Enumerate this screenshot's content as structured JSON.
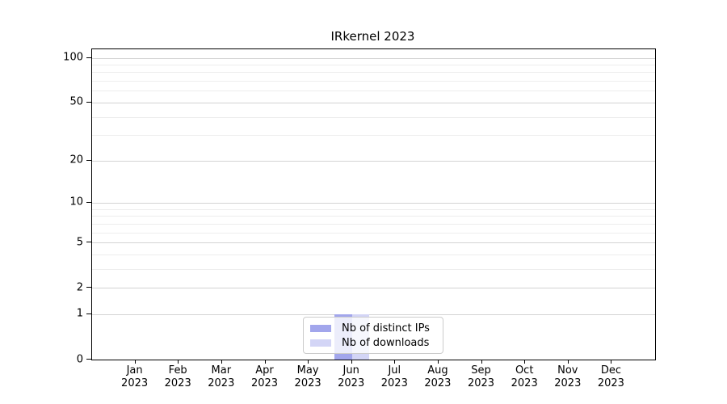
{
  "title": "IRkernel 2023",
  "chart_data": {
    "type": "bar",
    "title": "IRkernel 2023",
    "categories": [
      "Jan",
      "Feb",
      "Mar",
      "Apr",
      "May",
      "Jun",
      "Jul",
      "Aug",
      "Sep",
      "Oct",
      "Nov",
      "Dec"
    ],
    "category_year": "2023",
    "series": [
      {
        "name": "Nb of distinct IPs",
        "color": "#a2a6ec",
        "values": [
          0,
          0,
          0,
          0,
          0,
          1,
          0,
          0,
          0,
          0,
          0,
          0
        ]
      },
      {
        "name": "Nb of downloads",
        "color": "#d3d5f6",
        "values": [
          0,
          0,
          0,
          0,
          0,
          1,
          0,
          0,
          0,
          0,
          0,
          0
        ]
      }
    ],
    "xlabel": "",
    "ylabel": "",
    "yscale": "log1p",
    "ylim": [
      0,
      114
    ],
    "yticks_major": [
      100,
      50,
      20,
      10,
      5,
      2,
      1,
      0
    ],
    "yticks_minor": [
      3,
      4,
      6,
      7,
      8,
      9,
      30,
      40,
      60,
      70,
      80,
      90
    ],
    "grid": "horizontal",
    "legend_position": "lower center",
    "colors": {
      "grid_major": "#d3d3d3",
      "grid_minor": "#ededed",
      "axis": "#000000",
      "legend_border": "#cccccc"
    }
  }
}
